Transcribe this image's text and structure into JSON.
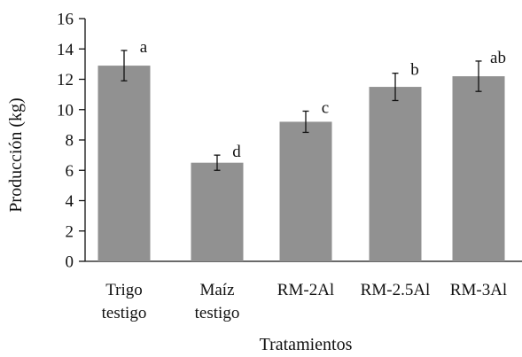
{
  "chart_data": {
    "type": "bar",
    "title": "",
    "xlabel": "Tratamientos",
    "ylabel": "Producción (kg)",
    "ylim": [
      0,
      16
    ],
    "yticks": [
      "0",
      "2",
      "4",
      "6",
      "8",
      "10",
      "12",
      "14",
      "16"
    ],
    "grid": false,
    "bar_color": "#919191",
    "categories": [
      [
        "Trigo",
        "testigo"
      ],
      [
        "Maíz",
        "testigo"
      ],
      [
        "RM-2Al"
      ],
      [
        "RM-2.5Al"
      ],
      [
        "RM-3Al"
      ]
    ],
    "values": [
      12.9,
      6.5,
      9.2,
      11.5,
      12.2
    ],
    "error": [
      1.0,
      0.5,
      0.7,
      0.9,
      1.0
    ],
    "significance_labels": [
      "a",
      "d",
      "c",
      "b",
      "ab"
    ]
  }
}
